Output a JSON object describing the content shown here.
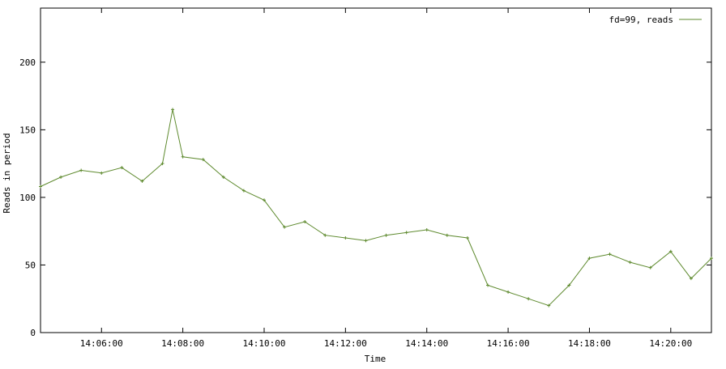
{
  "chart_data": {
    "type": "line",
    "title": "",
    "xlabel": "Time",
    "ylabel": "Reads in period",
    "xlim": [
      "14:04:30",
      "14:21:00"
    ],
    "ylim": [
      0,
      240
    ],
    "x_ticks": [
      "14:06:00",
      "14:08:00",
      "14:10:00",
      "14:12:00",
      "14:14:00",
      "14:16:00",
      "14:18:00",
      "14:20:00"
    ],
    "y_ticks": [
      0,
      50,
      100,
      150,
      200
    ],
    "grid": false,
    "legend_position": "top-right",
    "series": [
      {
        "name": "fd=99, reads",
        "color": "#5e8a2e",
        "marker": "plus",
        "x": [
          "14:04:30",
          "14:05:00",
          "14:05:30",
          "14:06:00",
          "14:06:30",
          "14:07:00",
          "14:07:30",
          "14:07:45",
          "14:08:00",
          "14:08:30",
          "14:09:00",
          "14:09:30",
          "14:10:00",
          "14:10:30",
          "14:11:00",
          "14:11:30",
          "14:12:00",
          "14:12:30",
          "14:13:00",
          "14:13:30",
          "14:14:00",
          "14:14:30",
          "14:15:00",
          "14:15:30",
          "14:16:00",
          "14:16:30",
          "14:17:00",
          "14:17:30",
          "14:18:00",
          "14:18:30",
          "14:19:00",
          "14:19:30",
          "14:20:00",
          "14:20:30",
          "14:21:00"
        ],
        "y": [
          108,
          115,
          120,
          118,
          122,
          112,
          125,
          165,
          130,
          128,
          115,
          105,
          98,
          78,
          82,
          72,
          70,
          68,
          72,
          74,
          76,
          72,
          70,
          35,
          30,
          25,
          20,
          35,
          55,
          58,
          52,
          48,
          60,
          40,
          55
        ]
      }
    ]
  }
}
